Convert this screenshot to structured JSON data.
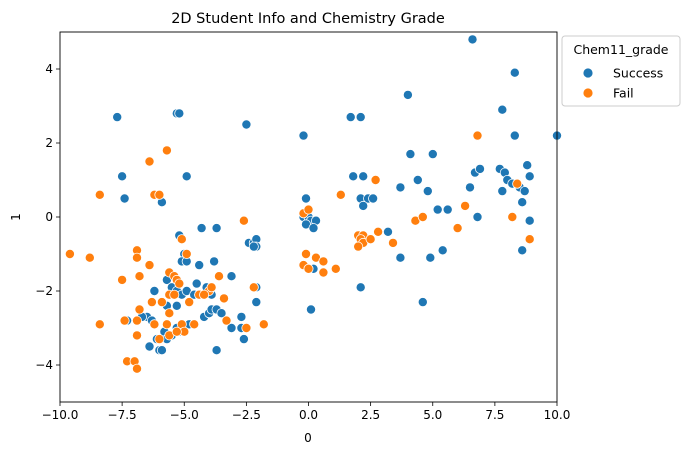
{
  "chart_data": {
    "type": "scatter",
    "title": "2D Student Info and Chemistry Grade",
    "xlabel": "0",
    "ylabel": "1",
    "xlim": [
      -10,
      10
    ],
    "ylim": [
      -5,
      5
    ],
    "xticks": [
      -10.0,
      -7.5,
      -5.0,
      -2.5,
      0.0,
      2.5,
      5.0,
      7.5,
      10.0
    ],
    "xtick_labels": [
      "−10.0",
      "−7.5",
      "−5.0",
      "−2.5",
      "0.0",
      "2.5",
      "5.0",
      "7.5",
      "10.0"
    ],
    "yticks": [
      -4,
      -2,
      0,
      2,
      4
    ],
    "ytick_labels": [
      "−4",
      "−2",
      "0",
      "2",
      "4"
    ],
    "grid": false,
    "legend": {
      "title": "Chem11_grade",
      "placement": "outside top-right",
      "entries": [
        "Success",
        "Fail"
      ]
    },
    "series": [
      {
        "name": "Success",
        "color": "#1f77b4",
        "points": [
          [
            -7.7,
            2.7
          ],
          [
            -7.5,
            1.1
          ],
          [
            -7.4,
            0.5
          ],
          [
            -5.3,
            2.8
          ],
          [
            -5.2,
            2.8
          ],
          [
            -4.9,
            1.1
          ],
          [
            -5.9,
            0.4
          ],
          [
            -2.5,
            2.5
          ],
          [
            -0.2,
            2.2
          ],
          [
            1.7,
            2.7
          ],
          [
            2.1,
            2.7
          ],
          [
            4.0,
            3.3
          ],
          [
            6.6,
            4.8
          ],
          [
            8.3,
            3.9
          ],
          [
            7.8,
            2.9
          ],
          [
            8.3,
            2.2
          ],
          [
            10.0,
            2.2
          ],
          [
            4.1,
            1.7
          ],
          [
            5.0,
            1.7
          ],
          [
            4.4,
            1.0
          ],
          [
            4.8,
            0.7
          ],
          [
            3.7,
            0.8
          ],
          [
            1.8,
            1.1
          ],
          [
            2.2,
            1.1
          ],
          [
            2.1,
            0.5
          ],
          [
            2.4,
            0.5
          ],
          [
            2.6,
            0.5
          ],
          [
            2.2,
            0.3
          ],
          [
            5.2,
            0.2
          ],
          [
            5.6,
            0.2
          ],
          [
            6.7,
            1.2
          ],
          [
            6.9,
            1.3
          ],
          [
            6.5,
            0.8
          ],
          [
            7.7,
            1.3
          ],
          [
            7.9,
            1.2
          ],
          [
            8.0,
            1.0
          ],
          [
            8.2,
            0.9
          ],
          [
            7.8,
            0.7
          ],
          [
            8.5,
            0.8
          ],
          [
            8.8,
            1.4
          ],
          [
            8.9,
            1.1
          ],
          [
            8.7,
            0.7
          ],
          [
            8.6,
            0.4
          ],
          [
            8.9,
            -0.1
          ],
          [
            6.8,
            0.0
          ],
          [
            -0.1,
            0.5
          ],
          [
            -0.2,
            0.0
          ],
          [
            0.0,
            0.0
          ],
          [
            0.1,
            -0.1
          ],
          [
            0.3,
            -0.1
          ],
          [
            -0.1,
            -0.2
          ],
          [
            0.2,
            -0.3
          ],
          [
            3.2,
            -0.4
          ],
          [
            3.7,
            -1.1
          ],
          [
            4.9,
            -1.1
          ],
          [
            5.4,
            -0.9
          ],
          [
            8.6,
            -0.9
          ],
          [
            4.6,
            -2.3
          ],
          [
            2.1,
            -1.9
          ],
          [
            0.1,
            -2.5
          ],
          [
            0.2,
            -1.4
          ],
          [
            -5.2,
            -0.5
          ],
          [
            -5.0,
            -1.0
          ],
          [
            -5.1,
            -1.2
          ],
          [
            -4.9,
            -1.2
          ],
          [
            -4.3,
            -0.3
          ],
          [
            -3.7,
            -0.3
          ],
          [
            -2.4,
            -0.7
          ],
          [
            -2.2,
            -0.7
          ],
          [
            -2.1,
            -0.6
          ],
          [
            -2.1,
            -0.8
          ],
          [
            -2.2,
            -0.8
          ],
          [
            -3.8,
            -1.2
          ],
          [
            -4.4,
            -1.3
          ],
          [
            -3.1,
            -1.6
          ],
          [
            -2.1,
            -1.9
          ],
          [
            -2.1,
            -2.3
          ],
          [
            -5.7,
            -1.7
          ],
          [
            -5.5,
            -1.9
          ],
          [
            -5.3,
            -2.0
          ],
          [
            -5.1,
            -2.1
          ],
          [
            -4.9,
            -2.0
          ],
          [
            -4.6,
            -2.1
          ],
          [
            -4.4,
            -2.1
          ],
          [
            -4.2,
            -2.1
          ],
          [
            -3.9,
            -2.1
          ],
          [
            -4.1,
            -1.9
          ],
          [
            -4.5,
            -1.8
          ],
          [
            -6.2,
            -2.0
          ],
          [
            -6.5,
            -2.7
          ],
          [
            -6.7,
            -2.7
          ],
          [
            -6.3,
            -2.8
          ],
          [
            -5.7,
            -2.4
          ],
          [
            -5.3,
            -2.4
          ],
          [
            -5.8,
            -3.1
          ],
          [
            -5.7,
            -3.3
          ],
          [
            -5.5,
            -3.2
          ],
          [
            -5.3,
            -3.0
          ],
          [
            -6.1,
            -3.3
          ],
          [
            -6.0,
            -3.6
          ],
          [
            -5.9,
            -3.6
          ],
          [
            -7.3,
            -2.8
          ],
          [
            -6.4,
            -3.5
          ],
          [
            -4.2,
            -2.7
          ],
          [
            -4.0,
            -2.6
          ],
          [
            -3.9,
            -2.5
          ],
          [
            -3.7,
            -2.5
          ],
          [
            -3.5,
            -2.6
          ],
          [
            -3.1,
            -3.0
          ],
          [
            -2.7,
            -3.0
          ],
          [
            -2.6,
            -3.3
          ],
          [
            -2.7,
            -2.7
          ],
          [
            -3.7,
            -3.6
          ],
          [
            -4.8,
            -2.9
          ],
          [
            -5.2,
            -3.1
          ]
        ]
      },
      {
        "name": "Fail",
        "color": "#ff7f0e",
        "points": [
          [
            -8.4,
            0.6
          ],
          [
            -6.4,
            1.5
          ],
          [
            -5.7,
            1.8
          ],
          [
            -6.2,
            0.6
          ],
          [
            -6.0,
            0.6
          ],
          [
            -5.1,
            -0.6
          ],
          [
            -4.9,
            -1.0
          ],
          [
            -2.6,
            -0.1
          ],
          [
            -6.9,
            -0.9
          ],
          [
            -6.9,
            -1.1
          ],
          [
            -7.5,
            -1.7
          ],
          [
            -6.8,
            -1.6
          ],
          [
            -6.4,
            -1.3
          ],
          [
            -5.6,
            -1.5
          ],
          [
            -5.4,
            -1.6
          ],
          [
            -5.3,
            -1.7
          ],
          [
            -5.2,
            -1.8
          ],
          [
            -5.6,
            -2.1
          ],
          [
            -5.4,
            -2.1
          ],
          [
            -6.3,
            -2.3
          ],
          [
            -5.9,
            -2.3
          ],
          [
            -4.8,
            -2.3
          ],
          [
            -4.4,
            -2.1
          ],
          [
            -4.0,
            -2.0
          ],
          [
            -3.4,
            -2.2
          ],
          [
            -3.6,
            -1.6
          ],
          [
            -3.9,
            -1.9
          ],
          [
            -6.8,
            -2.5
          ],
          [
            -6.9,
            -2.8
          ],
          [
            -7.4,
            -2.8
          ],
          [
            -6.2,
            -2.9
          ],
          [
            -5.7,
            -2.9
          ],
          [
            -5.6,
            -2.6
          ],
          [
            -5.1,
            -2.9
          ],
          [
            -5.0,
            -3.1
          ],
          [
            -4.6,
            -2.9
          ],
          [
            -4.2,
            -2.1
          ],
          [
            -6.9,
            -3.2
          ],
          [
            -6.0,
            -3.3
          ],
          [
            -5.6,
            -3.2
          ],
          [
            -5.3,
            -3.1
          ],
          [
            -7.3,
            -3.9
          ],
          [
            -7.0,
            -3.9
          ],
          [
            -6.9,
            -4.1
          ],
          [
            -8.4,
            -2.9
          ],
          [
            -9.6,
            -1.0
          ],
          [
            -8.8,
            -1.1
          ],
          [
            -3.3,
            -2.8
          ],
          [
            -2.5,
            -3.0
          ],
          [
            -2.2,
            -1.9
          ],
          [
            -1.8,
            -2.9
          ],
          [
            -0.2,
            0.1
          ],
          [
            0.0,
            0.2
          ],
          [
            -0.1,
            -1.0
          ],
          [
            0.3,
            -1.1
          ],
          [
            0.6,
            -1.2
          ],
          [
            0.6,
            -1.5
          ],
          [
            1.1,
            -1.4
          ],
          [
            -0.2,
            -1.3
          ],
          [
            0.0,
            -1.4
          ],
          [
            1.3,
            0.6
          ],
          [
            2.0,
            -0.5
          ],
          [
            2.2,
            -0.5
          ],
          [
            2.1,
            -0.6
          ],
          [
            2.2,
            -0.7
          ],
          [
            2.5,
            -0.6
          ],
          [
            2.0,
            -0.8
          ],
          [
            2.8,
            -0.4
          ],
          [
            2.7,
            1.0
          ],
          [
            3.4,
            -0.7
          ],
          [
            4.3,
            -0.1
          ],
          [
            4.6,
            0.0
          ],
          [
            6.3,
            0.3
          ],
          [
            6.0,
            -0.3
          ],
          [
            6.8,
            2.2
          ],
          [
            8.2,
            0.0
          ],
          [
            8.4,
            0.9
          ],
          [
            8.9,
            -0.6
          ]
        ]
      }
    ]
  }
}
